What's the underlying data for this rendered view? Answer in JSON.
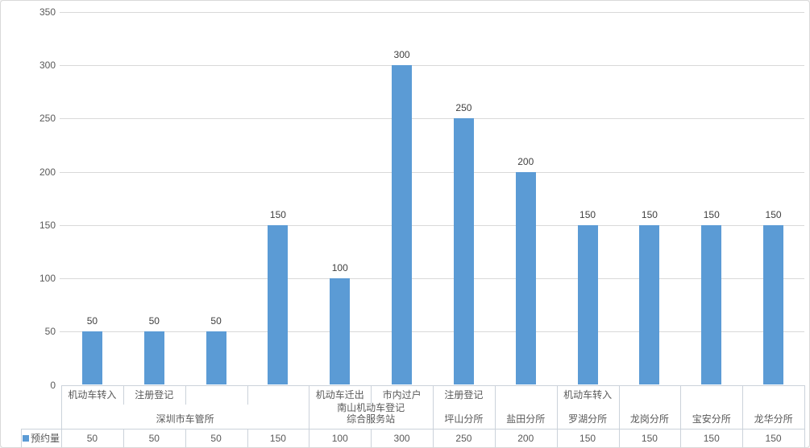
{
  "chart_data": {
    "type": "bar",
    "title": "",
    "categories": [
      "机动车转入",
      "注册登记",
      "",
      "",
      "机动车迁出",
      "市内过户",
      "注册登记",
      "",
      "机动车转入",
      "",
      "",
      ""
    ],
    "groups": [
      {
        "label": "深圳市车管所",
        "span": 4
      },
      {
        "label": "南山机动车登记综合服务站",
        "span": 2
      },
      {
        "label": "坪山分所",
        "span": 1
      },
      {
        "label": "盐田分所",
        "span": 1
      },
      {
        "label": "罗湖分所",
        "span": 1
      },
      {
        "label": "龙岗分所",
        "span": 1
      },
      {
        "label": "宝安分所",
        "span": 1
      },
      {
        "label": "龙华分所",
        "span": 1
      }
    ],
    "series": [
      {
        "name": "预约量",
        "color": "#5B9BD5",
        "values": [
          50,
          50,
          50,
          150,
          100,
          300,
          250,
          200,
          150,
          150,
          150,
          150
        ]
      }
    ],
    "ylim": [
      0,
      350
    ],
    "ytick_step": 50,
    "yticks": [
      0,
      50,
      100,
      150,
      200,
      250,
      300,
      350
    ],
    "grid": true,
    "data_labels": true,
    "data_table": true,
    "legend_position": "data-table-left"
  },
  "colors": {
    "bar": "#5B9BD5",
    "gridline": "#D9D9D9",
    "table_border": "#CBD2DA",
    "frame_border": "#D9D9D9",
    "axis_text": "#595959",
    "data_label_text": "#404040",
    "table_text": "#595959"
  }
}
